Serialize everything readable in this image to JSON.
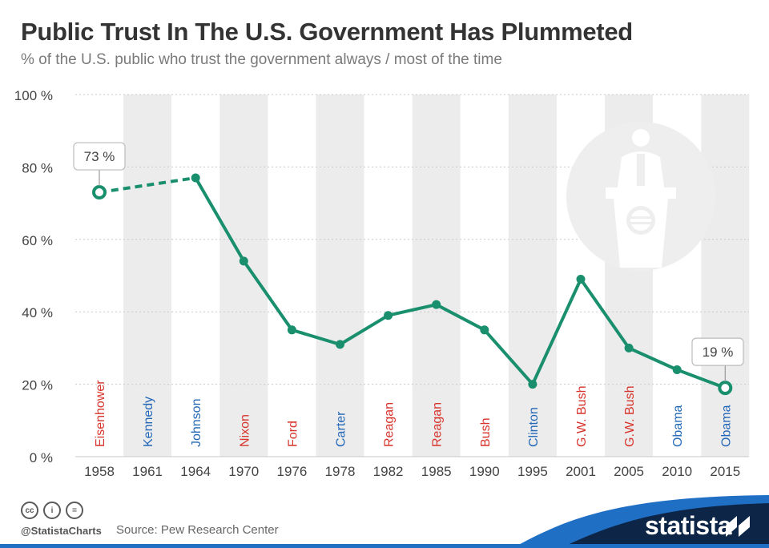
{
  "header": {
    "title": "Public Trust In The U.S. Government Has Plummeted",
    "subtitle": "% of the U.S. public who trust the government always / most of the time"
  },
  "colors": {
    "line": "#1a8f6e",
    "republican": "#d7342c",
    "democrat": "#2368b8",
    "band": "#ececec",
    "grid": "#c9c9c9",
    "axis_text": "#444444",
    "footer_navy": "#0d2647",
    "footer_blue": "#1f6fc5"
  },
  "chart_data": {
    "type": "line",
    "categories": [
      "1958",
      "1961",
      "1964",
      "1970",
      "1976",
      "1978",
      "1982",
      "1985",
      "1990",
      "1995",
      "2001",
      "2005",
      "2010",
      "2015"
    ],
    "values": [
      73,
      null,
      77,
      54,
      35,
      31,
      39,
      42,
      35,
      20,
      49,
      30,
      24,
      19
    ],
    "dashed_segment": [
      "1958",
      "1964"
    ],
    "presidents": [
      {
        "name": "Eisenhower",
        "party": "R"
      },
      {
        "name": "Kennedy",
        "party": "D"
      },
      {
        "name": "Johnson",
        "party": "D"
      },
      {
        "name": "Nixon",
        "party": "R"
      },
      {
        "name": "Ford",
        "party": "R"
      },
      {
        "name": "Carter",
        "party": "D"
      },
      {
        "name": "Reagan",
        "party": "R"
      },
      {
        "name": "Reagan",
        "party": "R"
      },
      {
        "name": "Bush",
        "party": "R"
      },
      {
        "name": "Clinton",
        "party": "D"
      },
      {
        "name": "G.W. Bush",
        "party": "R"
      },
      {
        "name": "G.W. Bush",
        "party": "R"
      },
      {
        "name": "Obama",
        "party": "D"
      },
      {
        "name": "Obama",
        "party": "D"
      }
    ],
    "yticks": [
      "0 %",
      "20 %",
      "40 %",
      "60 %",
      "80 %",
      "100 %"
    ],
    "ylim": [
      0,
      100
    ],
    "callouts": [
      {
        "index": 0,
        "text": "73 %"
      },
      {
        "index": 13,
        "text": "19 %"
      }
    ],
    "grid": true,
    "xlabel": "",
    "ylabel": ""
  },
  "footer": {
    "cc_icons": [
      "cc-icon",
      "by-icon",
      "nd-icon"
    ],
    "cc_glyphs": [
      "cc",
      "i",
      "="
    ],
    "handle": "@StatistaCharts",
    "source": "Source: Pew Research Center",
    "brand": "statista"
  }
}
